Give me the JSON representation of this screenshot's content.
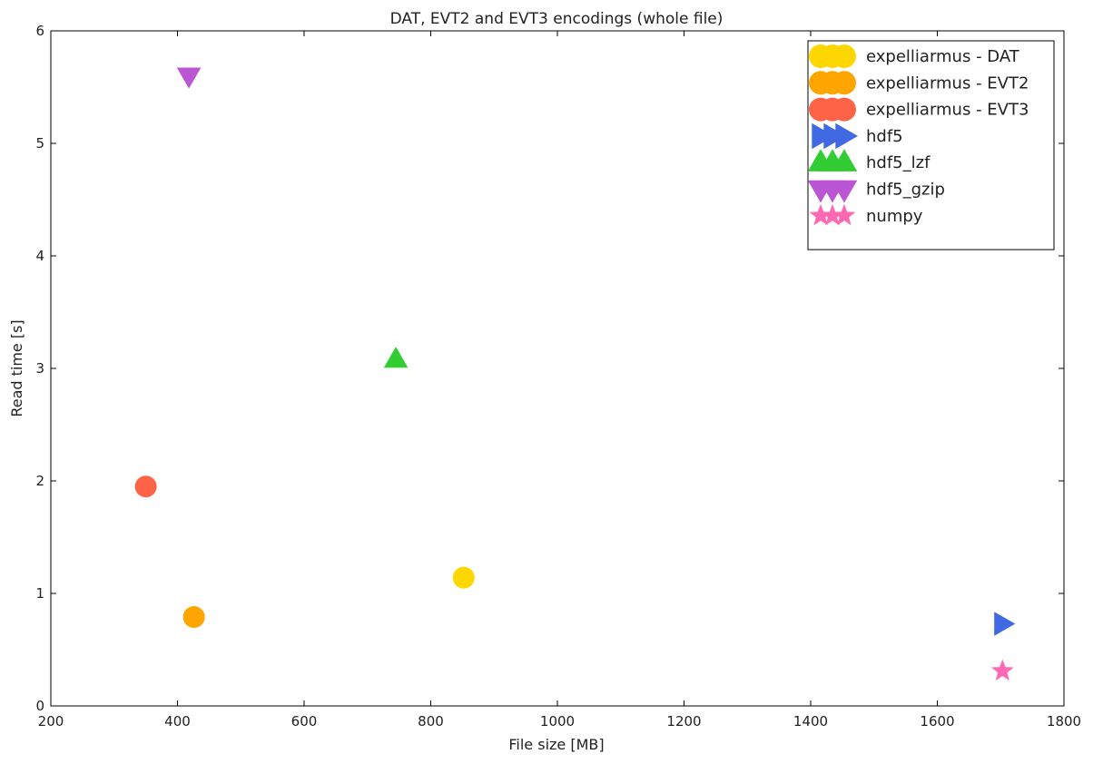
{
  "chart_data": {
    "type": "scatter",
    "title": "DAT, EVT2 and EVT3 encodings (whole file)",
    "xlabel": "File size [MB]",
    "ylabel": "Read time [s]",
    "xlim": [
      200,
      1800
    ],
    "ylim": [
      0,
      6
    ],
    "xticks": [
      200,
      400,
      600,
      800,
      1000,
      1200,
      1400,
      1600,
      1800
    ],
    "yticks": [
      0,
      1,
      2,
      3,
      4,
      5,
      6
    ],
    "grid": false,
    "legend_position": "top-right",
    "series": [
      {
        "name": "expelliarmus - DAT",
        "marker": "circle",
        "color": "#FFD700",
        "x": [
          852
        ],
        "y": [
          1.14
        ]
      },
      {
        "name": "expelliarmus - EVT2",
        "marker": "circle",
        "color": "#FFA500",
        "x": [
          426
        ],
        "y": [
          0.79
        ]
      },
      {
        "name": "expelliarmus - EVT3",
        "marker": "circle",
        "color": "#FF6347",
        "x": [
          350
        ],
        "y": [
          1.95
        ]
      },
      {
        "name": "hdf5",
        "marker": "triangle-right",
        "color": "#4169E1",
        "x": [
          1703
        ],
        "y": [
          0.73
        ]
      },
      {
        "name": "hdf5_lzf",
        "marker": "triangle-up",
        "color": "#32CD32",
        "x": [
          745
        ],
        "y": [
          3.08
        ]
      },
      {
        "name": "hdf5_gzip",
        "marker": "triangle-down",
        "color": "#BA55D3",
        "x": [
          418
        ],
        "y": [
          5.6
        ]
      },
      {
        "name": "numpy",
        "marker": "star",
        "color": "#FF69B4",
        "x": [
          1703
        ],
        "y": [
          0.31
        ]
      }
    ]
  }
}
